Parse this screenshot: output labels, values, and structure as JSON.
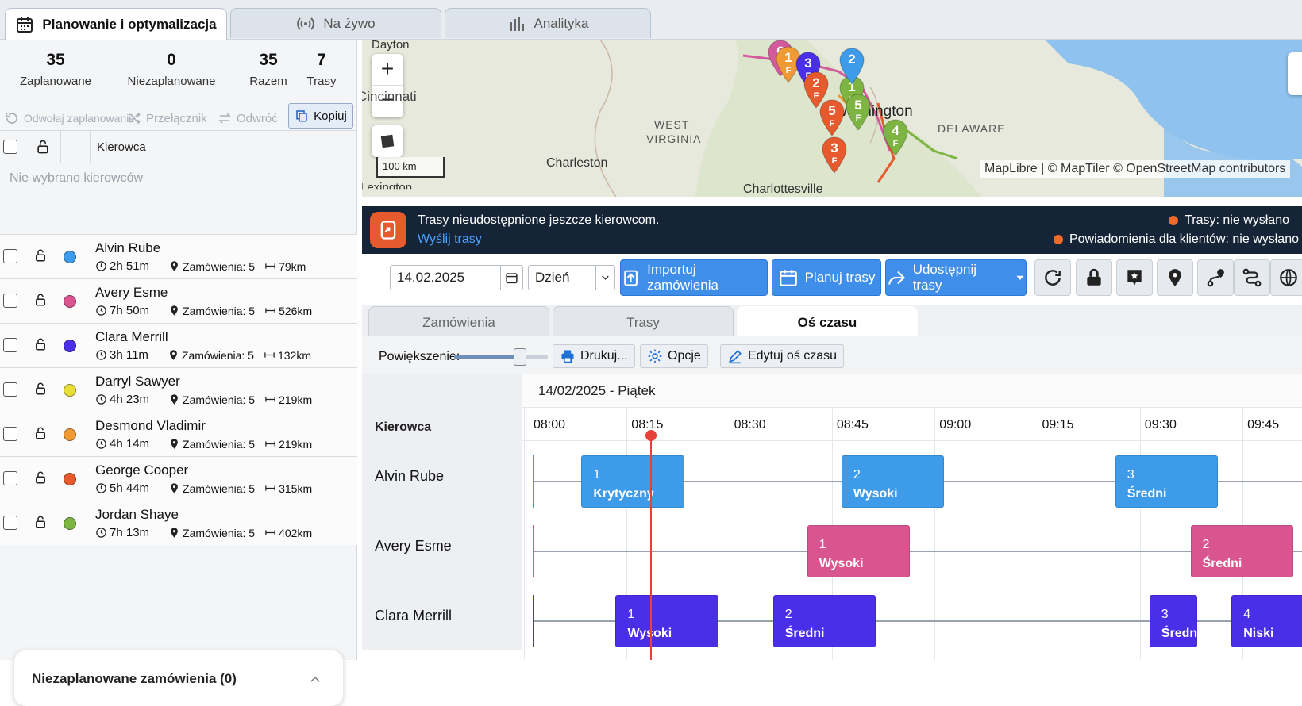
{
  "tabs": [
    {
      "label": "Planowanie i optymalizacja",
      "icon": "calendar-icon"
    },
    {
      "label": "Na żywo",
      "icon": "broadcast-icon"
    },
    {
      "label": "Analityka",
      "icon": "bar-chart-icon"
    }
  ],
  "stats": [
    {
      "value": "35",
      "label": "Zaplanowane"
    },
    {
      "value": "0",
      "label": "Niezaplanowane"
    },
    {
      "value": "35",
      "label": "Razem"
    },
    {
      "value": "7",
      "label": "Trasy"
    }
  ],
  "actions": {
    "unschedule": "Odwołaj zaplanowanie",
    "switch": "Przełącznik",
    "reverse": "Odwróć",
    "copy": "Kopiuj"
  },
  "driver_list": {
    "column": "Kierowca",
    "empty": "Nie wybrano kierowców",
    "drivers": [
      {
        "name": "Alvin Rube",
        "time": "2h 51m",
        "orders": "Zamówienia: 5",
        "distance": "79km",
        "color": "#3d9be9"
      },
      {
        "name": "Avery Esme",
        "time": "7h 50m",
        "orders": "Zamówienia: 5",
        "distance": "526km",
        "color": "#d8558f"
      },
      {
        "name": "Clara Merrill",
        "time": "3h 11m",
        "orders": "Zamówienia: 5",
        "distance": "132km",
        "color": "#4a2ee8"
      },
      {
        "name": "Darryl Sawyer",
        "time": "4h 23m",
        "orders": "Zamówienia: 5",
        "distance": "219km",
        "color": "#e8de3a"
      },
      {
        "name": "Desmond Vladimir",
        "time": "4h 14m",
        "orders": "Zamówienia: 5",
        "distance": "219km",
        "color": "#f09a35"
      },
      {
        "name": "George Cooper",
        "time": "5h 44m",
        "orders": "Zamówienia: 5",
        "distance": "315km",
        "color": "#e65a2d"
      },
      {
        "name": "Jordan Shaye",
        "time": "7h 13m",
        "orders": "Zamówienia: 5",
        "distance": "402km",
        "color": "#7db442"
      }
    ]
  },
  "unplanned_panel": "Niezaplanowane zamówienia (0)",
  "map": {
    "scale": "100 km",
    "attribution": "MapLibre | © MapTiler © OpenStreetMap contributors",
    "places": [
      "Dayton",
      "Cincinnati",
      "WEST",
      "VIRGINIA",
      "Charleston",
      "Washington",
      "DELAWARE",
      "Charlottesville",
      "Lexington"
    ],
    "markers": [
      {
        "label": "6",
        "sub": "F",
        "color": "#d35a9c"
      },
      {
        "label": "1",
        "sub": "F",
        "color": "#f09a35"
      },
      {
        "label": "3",
        "sub": "F",
        "color": "#4a2ee8"
      },
      {
        "label": "2",
        "sub": "F",
        "color": "#e65a2d"
      },
      {
        "label": "1",
        "sub": "F",
        "color": "#7db442"
      },
      {
        "label": "5",
        "sub": "F",
        "color": "#e65a2d"
      },
      {
        "label": "5",
        "sub": "F",
        "color": "#7db442"
      },
      {
        "label": "3",
        "sub": "F",
        "color": "#e65a2d"
      },
      {
        "label": "4",
        "sub": "F",
        "color": "#7db442"
      },
      {
        "label": "2",
        "sub": "",
        "color": "#3d9be9"
      }
    ]
  },
  "banner": {
    "message": "Trasy nieudostępnione jeszcze kierowcom.",
    "link": "Wyślij trasy",
    "status1": "Trasy: nie wysłano",
    "status2": "Powiadomienia dla klientów: nie wysłano"
  },
  "toolbar": {
    "date": "14.02.2025",
    "view": "Dzień",
    "import": "Importuj zamówienia",
    "plan": "Planuj trasy",
    "share": "Udostępnij trasy"
  },
  "subtabs": [
    "Zamówienia",
    "Trasy",
    "Oś czasu"
  ],
  "timeline_tools": {
    "zoom": "Powiększenie:",
    "zoom_level": 0.7,
    "print": "Drukuj...",
    "options": "Opcje",
    "edit": "Edytuj oś czasu"
  },
  "timeline": {
    "date_header": "14/02/2025 - Piątek",
    "column": "Kierowca",
    "hours": [
      "08:00",
      "08:15",
      "08:30",
      "08:45",
      "09:00",
      "09:15",
      "09:30",
      "09:45"
    ],
    "now_marker": "08:17",
    "rows": [
      {
        "driver": "Alvin Rube",
        "color": "#3d9be9",
        "jobs": [
          {
            "n": "1",
            "priority": "Krytyczny",
            "start": "08:07",
            "end": "08:22"
          },
          {
            "n": "2",
            "priority": "Wysoki",
            "start": "08:45",
            "end": "09:00"
          },
          {
            "n": "3",
            "priority": "Średni",
            "start": "09:25",
            "end": "09:40"
          }
        ]
      },
      {
        "driver": "Avery Esme",
        "color": "#d8558f",
        "jobs": [
          {
            "n": "1",
            "priority": "Wysoki",
            "start": "08:40",
            "end": "08:55"
          },
          {
            "n": "2",
            "priority": "Średni",
            "start": "09:36",
            "end": "09:51"
          }
        ]
      },
      {
        "driver": "Clara Merrill",
        "color": "#4a2ee8",
        "jobs": [
          {
            "n": "1",
            "priority": "Wysoki",
            "start": "08:12",
            "end": "08:27"
          },
          {
            "n": "2",
            "priority": "Średni",
            "start": "08:35",
            "end": "08:50"
          },
          {
            "n": "3",
            "priority": "Średni",
            "start": "09:30",
            "end": "09:37"
          },
          {
            "n": "4",
            "priority": "Niski",
            "start": "09:42",
            "end": "09:55"
          }
        ]
      }
    ]
  }
}
